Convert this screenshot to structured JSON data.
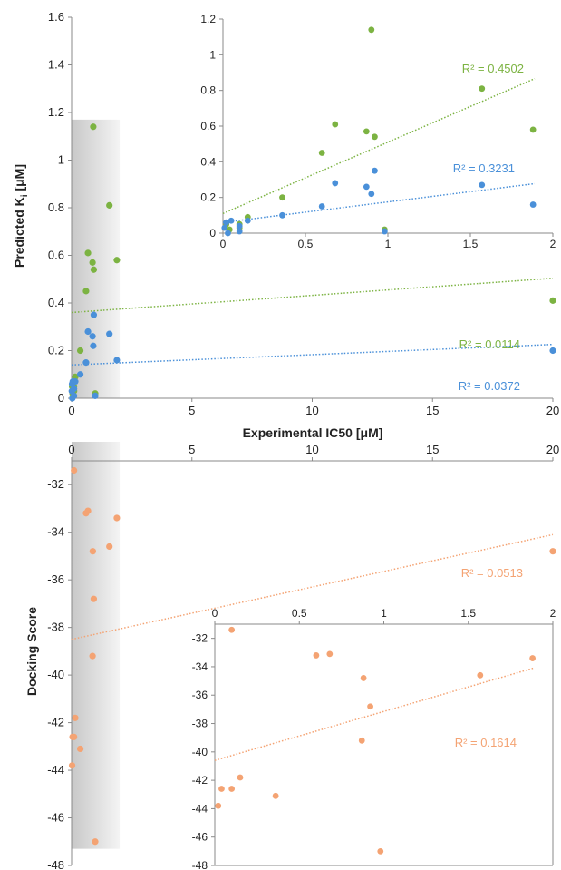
{
  "chart_data": [
    {
      "type": "scatter",
      "xlabel": "Experimental IC50 [μM]",
      "ylabel": "Predicted Ki [μM]",
      "ylabel_main": "Predicted K",
      "ylabel_sub": "i",
      "ylabel_unit": " [μM]",
      "xlim": [
        0,
        20
      ],
      "ylim": [
        0,
        1.6
      ],
      "xticks": [
        "0",
        "5",
        "10",
        "15",
        "20"
      ],
      "yticks": [
        "0",
        "0.2",
        "0.4",
        "0.6",
        "0.8",
        "1",
        "1.2",
        "1.4",
        "1.6"
      ],
      "shaded_region": {
        "x": [
          0,
          2
        ],
        "y": [
          0,
          1.17
        ]
      },
      "grid": false,
      "colors": {
        "green": "#7cb342",
        "blue": "#4a90d9",
        "shade": "#d9d9d9"
      },
      "series": [
        {
          "color": "#7cb342",
          "points": [
            [
              0.02,
              0.05
            ],
            [
              0.04,
              0.02
            ],
            [
              0.1,
              0.05
            ],
            [
              0.1,
              0.03
            ],
            [
              0.15,
              0.09
            ],
            [
              0.36,
              0.2
            ],
            [
              0.6,
              0.45
            ],
            [
              0.68,
              0.61
            ],
            [
              0.87,
              0.57
            ],
            [
              0.9,
              1.14
            ],
            [
              0.92,
              0.54
            ],
            [
              0.98,
              0.02
            ],
            [
              1.57,
              0.81
            ],
            [
              1.88,
              0.58
            ],
            [
              20,
              0.41
            ]
          ],
          "trend": {
            "intercept": 0.36,
            "slope": 0.0072
          },
          "r2_label": "R² = 0.0114"
        },
        {
          "color": "#4a90d9",
          "points": [
            [
              0.01,
              0.03
            ],
            [
              0.02,
              0.06
            ],
            [
              0.03,
              0.0
            ],
            [
              0.05,
              0.07
            ],
            [
              0.1,
              0.04
            ],
            [
              0.1,
              0.01
            ],
            [
              0.15,
              0.07
            ],
            [
              0.36,
              0.1
            ],
            [
              0.6,
              0.15
            ],
            [
              0.68,
              0.28
            ],
            [
              0.87,
              0.26
            ],
            [
              0.9,
              0.22
            ],
            [
              0.92,
              0.35
            ],
            [
              0.98,
              0.01
            ],
            [
              1.57,
              0.27
            ],
            [
              1.88,
              0.16
            ],
            [
              20,
              0.2
            ]
          ],
          "trend": {
            "intercept": 0.14,
            "slope": 0.0043
          },
          "r2_label": "R² = 0.0372"
        }
      ],
      "inset": {
        "xlim": [
          0,
          2
        ],
        "ylim": [
          0,
          1.2
        ],
        "xticks": [
          "0",
          "0.5",
          "1",
          "1.5",
          "2"
        ],
        "yticks": [
          "0",
          "0.2",
          "0.4",
          "0.6",
          "0.8",
          "1",
          "1.2"
        ],
        "series": [
          {
            "color": "#7cb342",
            "points": [
              [
                0.02,
                0.05
              ],
              [
                0.04,
                0.02
              ],
              [
                0.1,
                0.05
              ],
              [
                0.1,
                0.03
              ],
              [
                0.15,
                0.09
              ],
              [
                0.36,
                0.2
              ],
              [
                0.6,
                0.45
              ],
              [
                0.68,
                0.61
              ],
              [
                0.87,
                0.57
              ],
              [
                0.9,
                1.14
              ],
              [
                0.92,
                0.54
              ],
              [
                0.98,
                0.02
              ],
              [
                1.57,
                0.81
              ],
              [
                1.88,
                0.58
              ]
            ],
            "trend": {
              "intercept": 0.11,
              "slope": 0.4
            },
            "r2_label": "R² = 0.4502"
          },
          {
            "color": "#4a90d9",
            "points": [
              [
                0.01,
                0.03
              ],
              [
                0.02,
                0.06
              ],
              [
                0.03,
                0.0
              ],
              [
                0.05,
                0.07
              ],
              [
                0.1,
                0.04
              ],
              [
                0.1,
                0.01
              ],
              [
                0.15,
                0.07
              ],
              [
                0.36,
                0.1
              ],
              [
                0.6,
                0.15
              ],
              [
                0.68,
                0.28
              ],
              [
                0.87,
                0.26
              ],
              [
                0.9,
                0.22
              ],
              [
                0.92,
                0.35
              ],
              [
                0.98,
                0.01
              ],
              [
                1.57,
                0.27
              ],
              [
                1.88,
                0.16
              ]
            ],
            "trend": {
              "intercept": 0.06,
              "slope": 0.115
            },
            "r2_label": "R² = 0.3231"
          }
        ]
      }
    },
    {
      "type": "scatter",
      "xlabel": "",
      "ylabel": "Docking Score",
      "xlim": [
        0,
        20
      ],
      "ylim": [
        -48,
        -31
      ],
      "xticks": [
        "0",
        "5",
        "10",
        "15",
        "20"
      ],
      "yticks": [
        "-32",
        "-34",
        "-36",
        "-38",
        "-40",
        "-42",
        "-44",
        "-46",
        "-48"
      ],
      "x_axis_position": "top",
      "shaded_region": {
        "x": [
          0,
          2
        ],
        "y": [
          -47.3,
          -30.2
        ]
      },
      "grid": false,
      "series": [
        {
          "color": "#f4a373",
          "points": [
            [
              0.02,
              -43.8
            ],
            [
              0.04,
              -42.6
            ],
            [
              0.1,
              -31.4
            ],
            [
              0.1,
              -42.6
            ],
            [
              0.15,
              -41.8
            ],
            [
              0.36,
              -43.1
            ],
            [
              0.6,
              -33.2
            ],
            [
              0.68,
              -33.1
            ],
            [
              0.87,
              -39.2
            ],
            [
              0.88,
              -34.8
            ],
            [
              0.92,
              -36.8
            ],
            [
              0.98,
              -47.0
            ],
            [
              1.57,
              -34.6
            ],
            [
              1.88,
              -33.4
            ],
            [
              20,
              -34.8
            ]
          ],
          "trend": {
            "intercept": -38.5,
            "slope": 0.22
          },
          "r2_label": "R² = 0.0513"
        }
      ],
      "inset": {
        "xlim": [
          0,
          2
        ],
        "ylim": [
          -48,
          -31
        ],
        "xticks": [
          "0",
          "0.5",
          "1",
          "1.5",
          "2"
        ],
        "yticks": [
          "-32",
          "-34",
          "-36",
          "-38",
          "-40",
          "-42",
          "-44",
          "-46",
          "-48"
        ],
        "x_axis_position": "top",
        "series": [
          {
            "color": "#f4a373",
            "points": [
              [
                0.02,
                -43.8
              ],
              [
                0.04,
                -42.6
              ],
              [
                0.1,
                -31.4
              ],
              [
                0.1,
                -42.6
              ],
              [
                0.15,
                -41.8
              ],
              [
                0.36,
                -43.1
              ],
              [
                0.6,
                -33.2
              ],
              [
                0.68,
                -33.1
              ],
              [
                0.87,
                -39.2
              ],
              [
                0.88,
                -34.8
              ],
              [
                0.92,
                -36.8
              ],
              [
                0.98,
                -47.0
              ],
              [
                1.57,
                -34.6
              ],
              [
                1.88,
                -33.4
              ]
            ],
            "trend": {
              "intercept": -40.6,
              "slope": 3.45
            },
            "r2_label": "R² = 0.1614"
          }
        ]
      }
    }
  ]
}
